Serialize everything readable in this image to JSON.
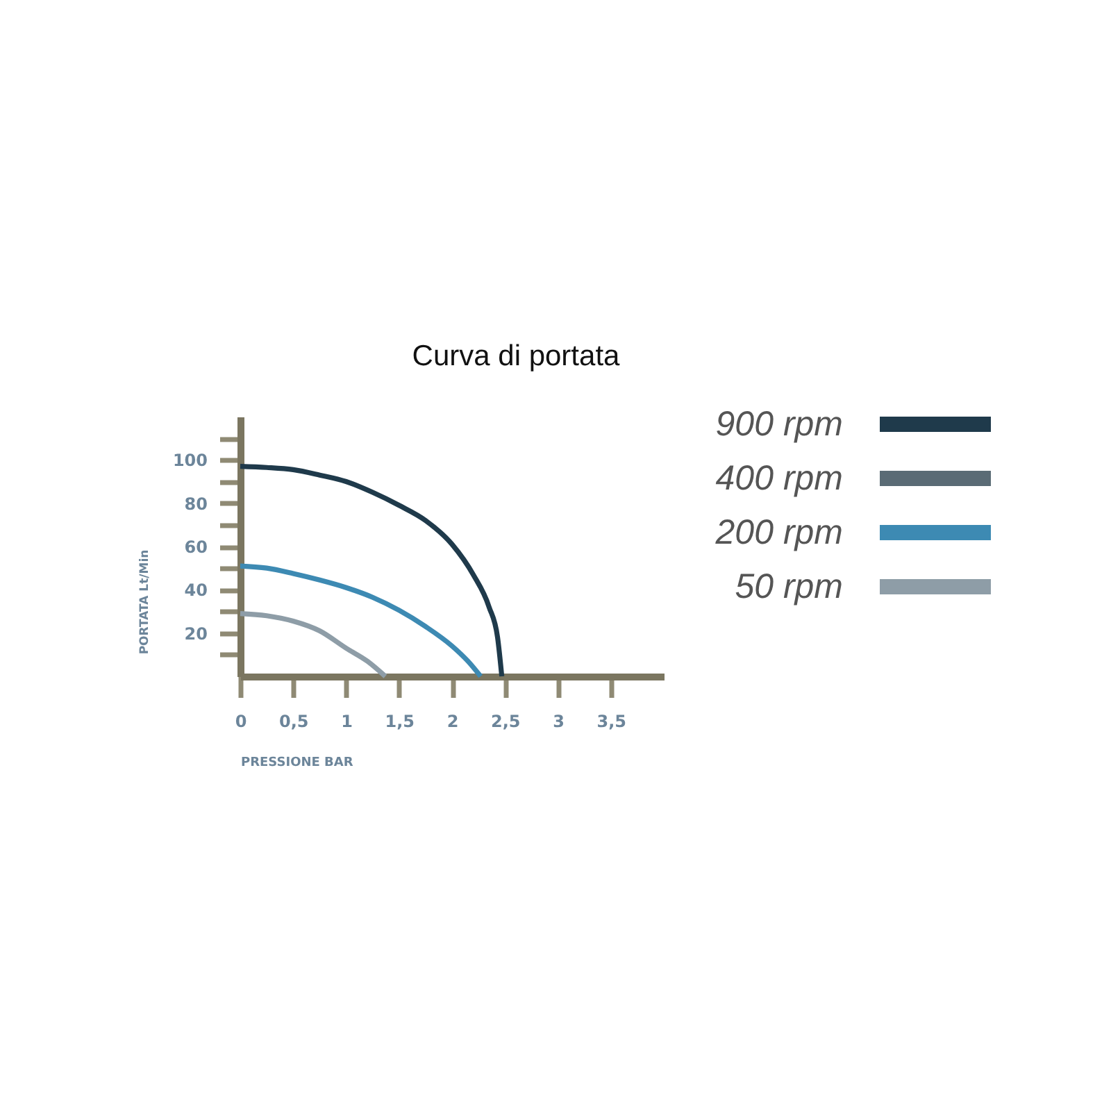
{
  "chart_data": {
    "type": "line",
    "title": "Curva di portata",
    "xlabel": "PRESSIONE BAR",
    "ylabel": "PORTATA Lt/Min",
    "xlim": [
      0,
      4
    ],
    "ylim": [
      0,
      120
    ],
    "xticks": [
      0,
      {
        "value": 0.5,
        "label": "0,5"
      },
      1,
      {
        "value": 1.5,
        "label": "1,5"
      },
      2,
      {
        "value": 2.5,
        "label": "2,5"
      },
      3,
      {
        "value": 3.5,
        "label": "3,5"
      }
    ],
    "yticks": [
      {
        "value": 10,
        "label": null
      },
      20,
      {
        "value": 30,
        "label": null
      },
      40,
      {
        "value": 50,
        "label": null
      },
      60,
      {
        "value": 70,
        "label": null
      },
      80,
      {
        "value": 90,
        "label": null
      },
      100,
      {
        "value": 110,
        "label": null
      }
    ],
    "legend": "top right",
    "series": [
      {
        "name": "900 rpm",
        "color": "#1f3a4b",
        "x": [
          0,
          0.25,
          0.5,
          0.75,
          1,
          1.25,
          1.5,
          1.75,
          2,
          2.2,
          2.35,
          2.43,
          2.47
        ],
        "values": [
          97,
          96.5,
          95.5,
          93,
          90,
          85,
          79,
          72,
          61,
          47,
          32,
          18,
          0
        ]
      },
      {
        "name": "400 rpm",
        "color": "#5a6b75"
      },
      {
        "name": "200 rpm",
        "color": "#3d8ab3",
        "x": [
          0,
          0.25,
          0.5,
          0.75,
          1,
          1.25,
          1.5,
          1.75,
          2,
          2.15,
          2.27
        ],
        "values": [
          51,
          50,
          47.5,
          44.5,
          41,
          36.5,
          30.5,
          23,
          14,
          7,
          0
        ]
      },
      {
        "name": "50 rpm",
        "color": "#8e9da7",
        "x": [
          0,
          0.25,
          0.5,
          0.75,
          1,
          1.2,
          1.37
        ],
        "values": [
          29,
          28,
          25.5,
          21,
          13,
          7,
          0
        ]
      }
    ]
  }
}
